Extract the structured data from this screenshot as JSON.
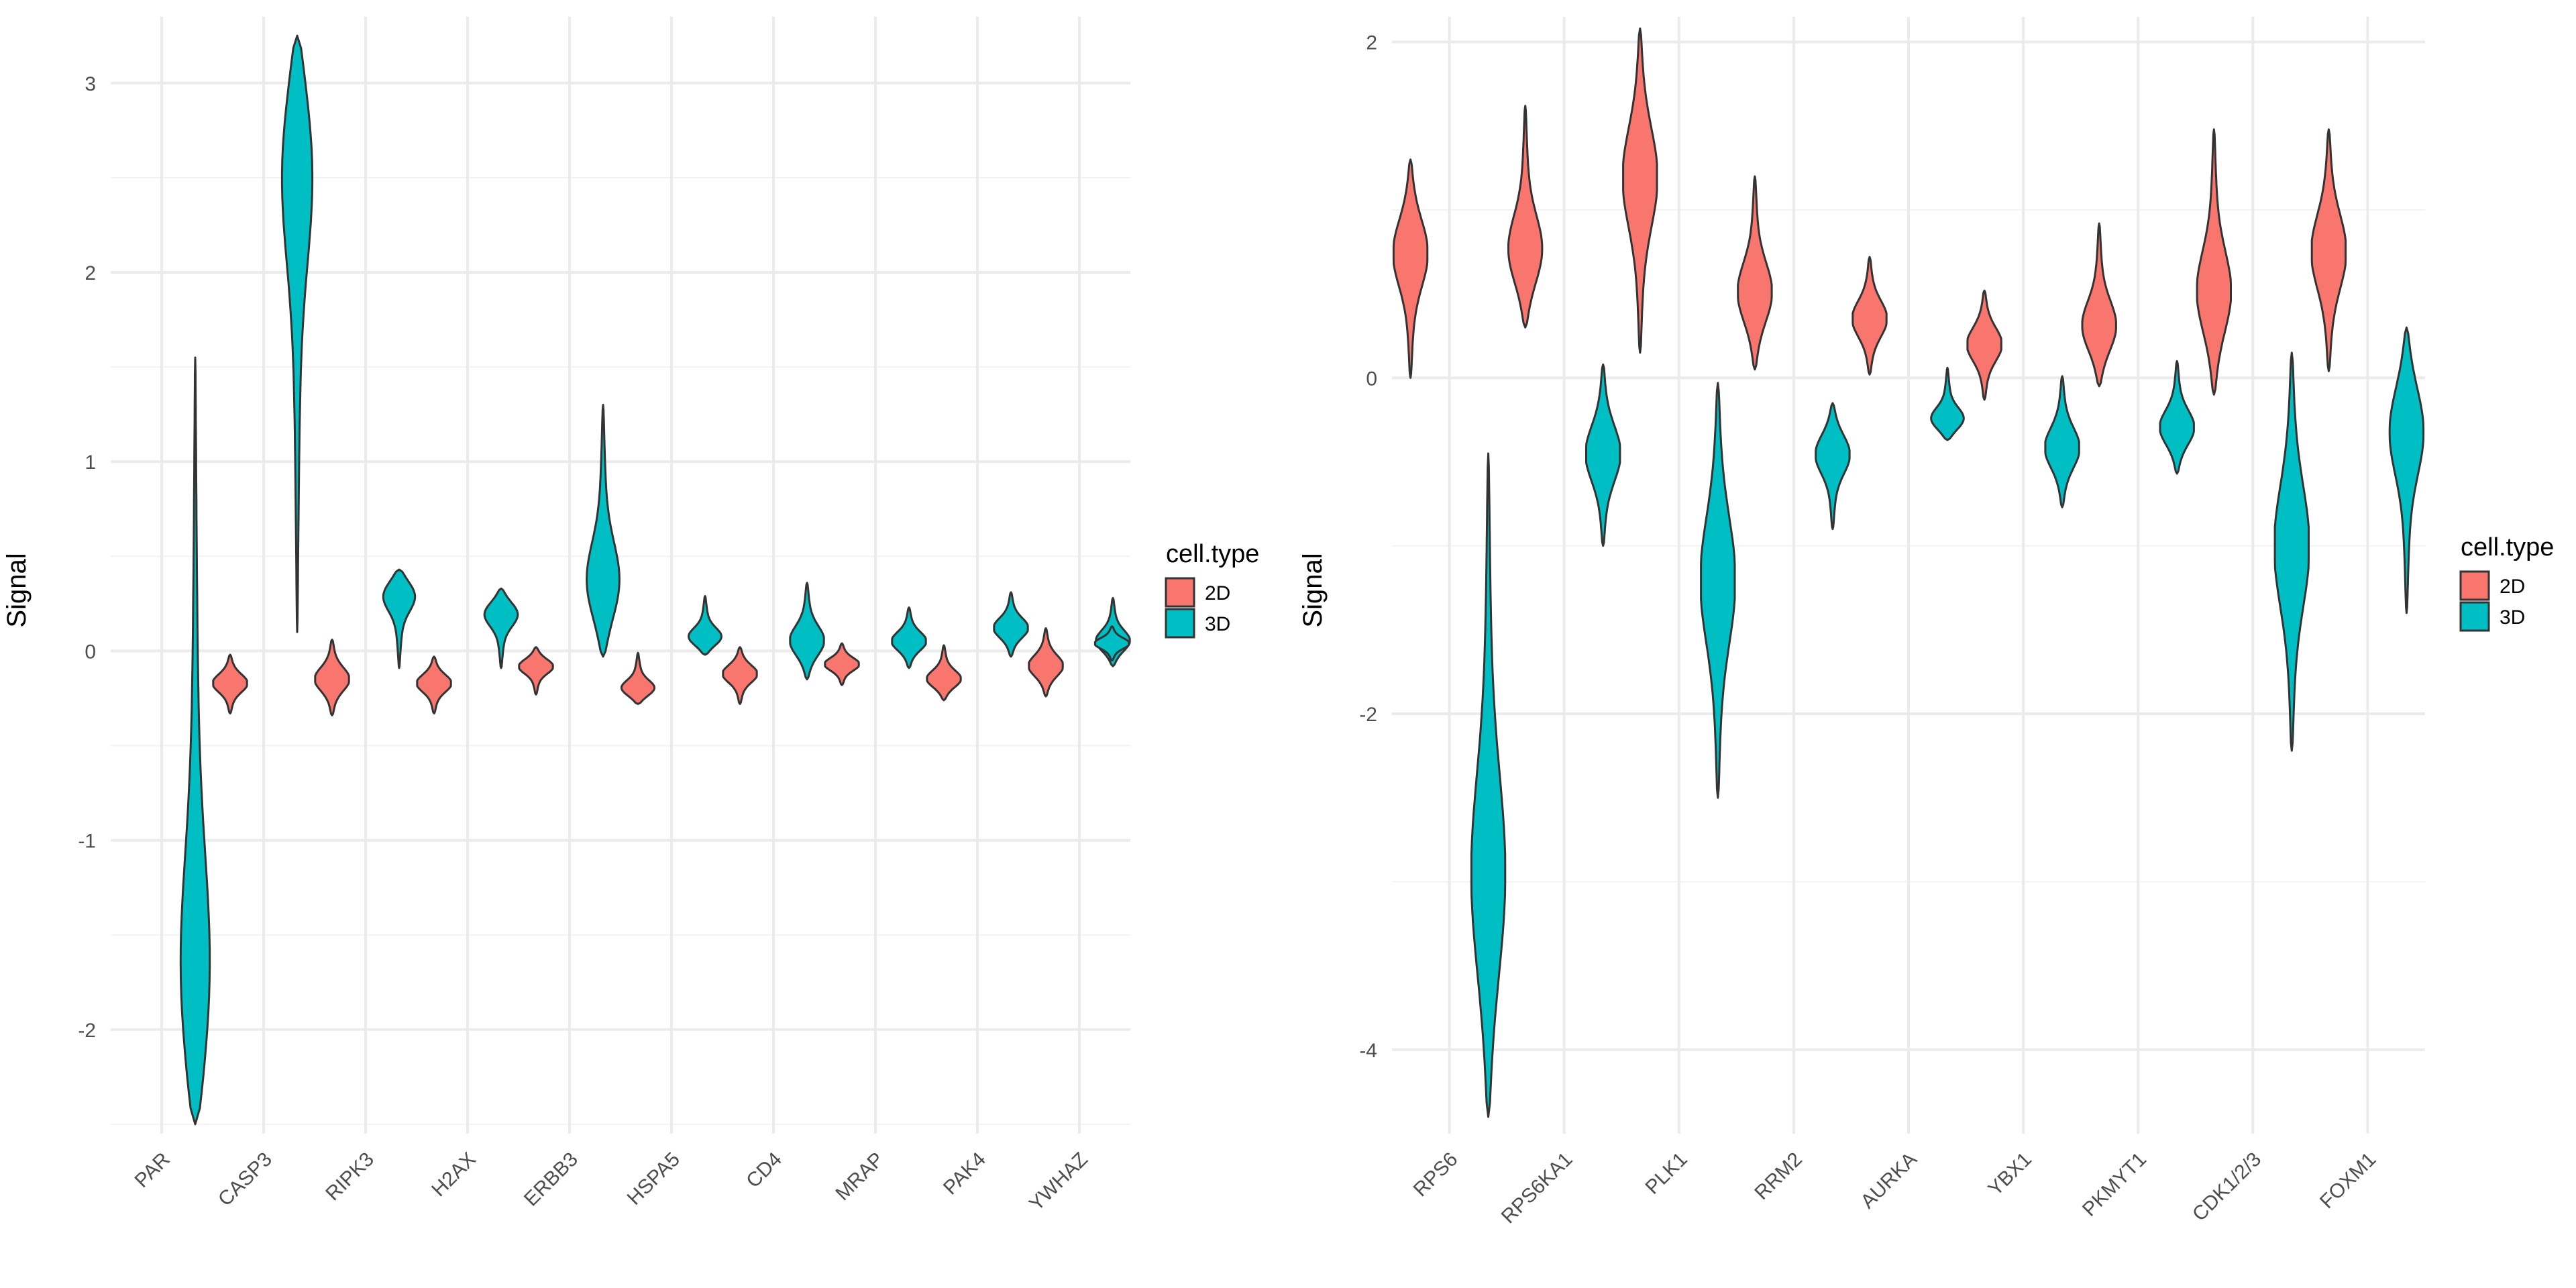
{
  "colors": {
    "2D": "#F8766D",
    "3D": "#00BFC4",
    "grid": "#ebebeb"
  },
  "legend": {
    "title": "cell.type",
    "entries": [
      "2D",
      "3D"
    ]
  },
  "chart_data": [
    {
      "type": "violin",
      "ylabel": "Signal",
      "ylim": [
        -2.55,
        3.35
      ],
      "yticks": [
        -2,
        -1,
        0,
        1,
        2,
        3
      ],
      "categories": [
        "PAR",
        "CASP3",
        "RIPK3",
        "H2AX",
        "ERBB3",
        "HSPA5",
        "CD4",
        "MRAP",
        "PAK4",
        "YWHAZ"
      ],
      "violins": [
        {
          "cat": 0,
          "group": "3D",
          "min": -2.5,
          "max": 1.55,
          "peak": -1.8
        },
        {
          "cat": 1,
          "group": "3D",
          "min": 0.1,
          "max": 3.25,
          "peak": 2.6
        },
        {
          "cat": 1,
          "group": "2D",
          "min": -0.33,
          "max": -0.02,
          "peak": -0.17
        },
        {
          "cat": 2,
          "group": "3D",
          "min": -0.09,
          "max": 0.43,
          "peak": 0.3
        },
        {
          "cat": 2,
          "group": "2D",
          "min": -0.34,
          "max": 0.06,
          "peak": -0.15
        },
        {
          "cat": 3,
          "group": "3D",
          "min": -0.09,
          "max": 0.33,
          "peak": 0.2
        },
        {
          "cat": 3,
          "group": "2D",
          "min": -0.33,
          "max": -0.03,
          "peak": -0.17
        },
        {
          "cat": 4,
          "group": "3D",
          "min": -0.03,
          "max": 1.3,
          "peak": 0.35
        },
        {
          "cat": 4,
          "group": "2D",
          "min": -0.23,
          "max": 0.02,
          "peak": -0.08
        },
        {
          "cat": 5,
          "group": "3D",
          "min": -0.02,
          "max": 0.29,
          "peak": 0.07
        },
        {
          "cat": 5,
          "group": "2D",
          "min": -0.28,
          "max": -0.01,
          "peak": -0.2
        },
        {
          "cat": 6,
          "group": "3D",
          "min": -0.15,
          "max": 0.36,
          "peak": 0.05
        },
        {
          "cat": 6,
          "group": "2D",
          "min": -0.28,
          "max": 0.02,
          "peak": -0.12
        },
        {
          "cat": 7,
          "group": "3D",
          "min": -0.09,
          "max": 0.23,
          "peak": 0.05
        },
        {
          "cat": 7,
          "group": "2D",
          "min": -0.18,
          "max": 0.04,
          "peak": -0.07
        },
        {
          "cat": 8,
          "group": "3D",
          "min": -0.03,
          "max": 0.31,
          "peak": 0.12
        },
        {
          "cat": 8,
          "group": "2D",
          "min": -0.26,
          "max": 0.03,
          "peak": -0.15
        },
        {
          "cat": 9,
          "group": "3D",
          "min": -0.08,
          "max": 0.28,
          "peak": 0.05
        },
        {
          "cat": 9,
          "group": "2D",
          "min": -0.24,
          "max": 0.12,
          "peak": -0.08
        },
        {
          "cat": 9.5,
          "group": "3D",
          "min": -0.05,
          "max": 0.13,
          "peak": 0.04
        }
      ]
    },
    {
      "type": "violin",
      "ylabel": "Signal",
      "ylim": [
        -4.5,
        2.15
      ],
      "yticks": [
        -4,
        -2,
        0,
        2
      ],
      "categories": [
        "RPS6",
        "RPS6KA1",
        "PLK1",
        "RRM2",
        "AURKA",
        "YBX1",
        "PKMYT1",
        "CDK1/2/3",
        "FOXM1"
      ],
      "violins": [
        {
          "cat": 0,
          "group": "2D",
          "min": 0.0,
          "max": 1.3,
          "peak": 0.75
        },
        {
          "cat": 0,
          "group": "3D",
          "min": -4.4,
          "max": -0.45,
          "peak": -3.0
        },
        {
          "cat": 1,
          "group": "2D",
          "min": 0.3,
          "max": 1.62,
          "peak": 0.75
        },
        {
          "cat": 1,
          "group": "3D",
          "min": -1.0,
          "max": 0.08,
          "peak": -0.45
        },
        {
          "cat": 2,
          "group": "2D",
          "min": 0.15,
          "max": 2.08,
          "peak": 1.2
        },
        {
          "cat": 2,
          "group": "3D",
          "min": -2.5,
          "max": -0.03,
          "peak": -1.2
        },
        {
          "cat": 3,
          "group": "2D",
          "min": 0.05,
          "max": 1.2,
          "peak": 0.5
        },
        {
          "cat": 3,
          "group": "3D",
          "min": -0.9,
          "max": -0.15,
          "peak": -0.45
        },
        {
          "cat": 4,
          "group": "2D",
          "min": 0.02,
          "max": 0.72,
          "peak": 0.35
        },
        {
          "cat": 4,
          "group": "3D",
          "min": -0.37,
          "max": 0.06,
          "peak": -0.25
        },
        {
          "cat": 5,
          "group": "2D",
          "min": -0.13,
          "max": 0.52,
          "peak": 0.2
        },
        {
          "cat": 5,
          "group": "3D",
          "min": -0.77,
          "max": 0.01,
          "peak": -0.42
        },
        {
          "cat": 6,
          "group": "2D",
          "min": -0.05,
          "max": 0.92,
          "peak": 0.3
        },
        {
          "cat": 6,
          "group": "3D",
          "min": -0.57,
          "max": 0.1,
          "peak": -0.3
        },
        {
          "cat": 7,
          "group": "2D",
          "min": -0.1,
          "max": 1.48,
          "peak": 0.5
        },
        {
          "cat": 7,
          "group": "3D",
          "min": -2.22,
          "max": 0.15,
          "peak": -1.0
        },
        {
          "cat": 8,
          "group": "2D",
          "min": 0.04,
          "max": 1.48,
          "peak": 0.75
        },
        {
          "cat": 8,
          "group": "3D",
          "min": -1.4,
          "max": 0.3,
          "peak": -0.3
        }
      ]
    }
  ]
}
